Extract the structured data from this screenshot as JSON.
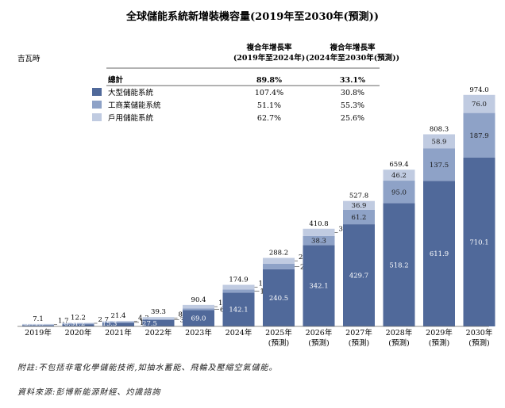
{
  "chart_data": {
    "type": "bar",
    "stacked": true,
    "title": "全球儲能系統新增裝機容量(2019年至2030年(預測))",
    "ylabel": "吉瓦時",
    "categories": [
      "2019年",
      "2020年",
      "2021年",
      "2022年",
      "2023年",
      "2024年",
      "2025年",
      "2026年",
      "2027年",
      "2028年",
      "2029年",
      "2030年"
    ],
    "category_sublabels": [
      "",
      "",
      "",
      "",
      "",
      "",
      "(預測)",
      "(預測)",
      "(預測)",
      "(預測)",
      "(預測)",
      "(預測)"
    ],
    "totals": [
      7.1,
      12.2,
      21.4,
      39.3,
      90.4,
      174.9,
      288.2,
      410.8,
      527.8,
      659.4,
      808.3,
      974.0
    ],
    "series": [
      {
        "name": "大型儲能系統",
        "color": "#50699a",
        "values": [
          3.7,
          8.3,
          15.3,
          27.5,
          69.0,
          142.1,
          240.5,
          342.1,
          429.7,
          518.2,
          611.9,
          710.1
        ]
      },
      {
        "name": "工商業儲能系統",
        "color": "#8ea2c7",
        "values": [
          1.7,
          1.2,
          1.8,
          3.2,
          6.9,
          13.4,
          23.3,
          38.3,
          61.2,
          95.0,
          137.5,
          187.9
        ]
      },
      {
        "name": "戶用儲能系統",
        "color": "#c0cbe1",
        "values": [
          1.7,
          2.7,
          4.3,
          8.6,
          14.5,
          19.4,
          24.4,
          30.4,
          36.9,
          46.2,
          58.9,
          76.0
        ]
      }
    ],
    "cagr_table": {
      "headers": [
        "複合年增長率\n(2019年至2024年)",
        "複合年增長率\n(2024年至2030年(預測))"
      ],
      "rows": [
        {
          "label": "總計",
          "values": [
            "89.8%",
            "33.1%"
          ]
        },
        {
          "label": "大型儲能系統",
          "values": [
            "107.4%",
            "30.8%"
          ]
        },
        {
          "label": "工商業儲能系統",
          "values": [
            "51.1%",
            "55.3%"
          ]
        },
        {
          "label": "戶用儲能系統",
          "values": [
            "62.7%",
            "25.6%"
          ]
        }
      ]
    },
    "ylim": [
      0,
      1000
    ],
    "grid": false,
    "legend_position": "top-left"
  },
  "notes": {
    "footnote": "附註:不包括非電化學儲能技術,如抽水蓄能、飛輪及壓縮空氣儲能。",
    "source": "資料來源:彭博新能源財經、灼識諮詢"
  }
}
